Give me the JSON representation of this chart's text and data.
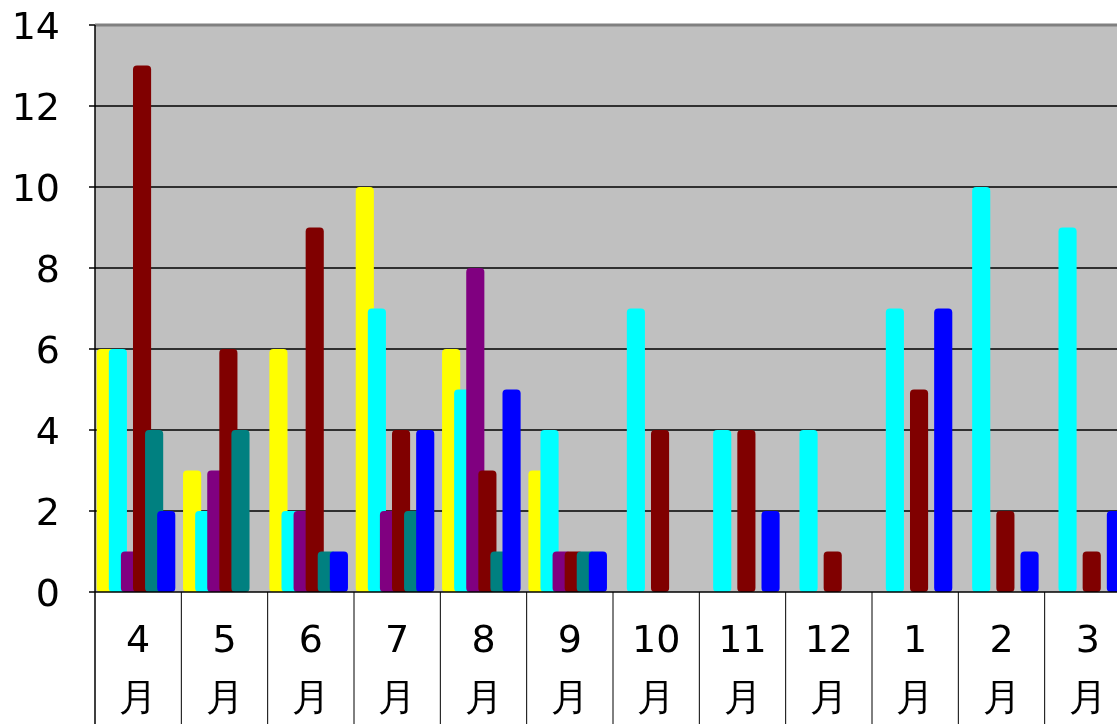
{
  "chart_data": {
    "type": "bar",
    "categories": [
      "4月",
      "5月",
      "6月",
      "7月",
      "8月",
      "9月",
      "10月",
      "11月",
      "12月",
      "1月",
      "2月",
      "3月"
    ],
    "series": [
      {
        "color": "#ffff00",
        "values": [
          6,
          3,
          6,
          10,
          6,
          3,
          0,
          0,
          0,
          0,
          0,
          0
        ]
      },
      {
        "color": "#00ffff",
        "values": [
          6,
          2,
          2,
          7,
          5,
          4,
          7,
          4,
          4,
          7,
          10,
          9
        ]
      },
      {
        "color": "#800080",
        "values": [
          1,
          3,
          2,
          2,
          8,
          1,
          0,
          0,
          0,
          0,
          0,
          0
        ]
      },
      {
        "color": "#800000",
        "values": [
          13,
          6,
          9,
          4,
          3,
          1,
          4,
          4,
          1,
          5,
          2,
          1
        ]
      },
      {
        "color": "#008080",
        "values": [
          4,
          4,
          1,
          2,
          1,
          1,
          0,
          0,
          0,
          0,
          0,
          0
        ]
      },
      {
        "color": "#0000ff",
        "values": [
          2,
          0,
          1,
          4,
          5,
          1,
          0,
          2,
          0,
          7,
          1,
          2
        ]
      }
    ],
    "ylim": [
      0,
      14
    ],
    "yticks": [
      0,
      2,
      4,
      6,
      8,
      10,
      12,
      14
    ],
    "grid": "y"
  }
}
